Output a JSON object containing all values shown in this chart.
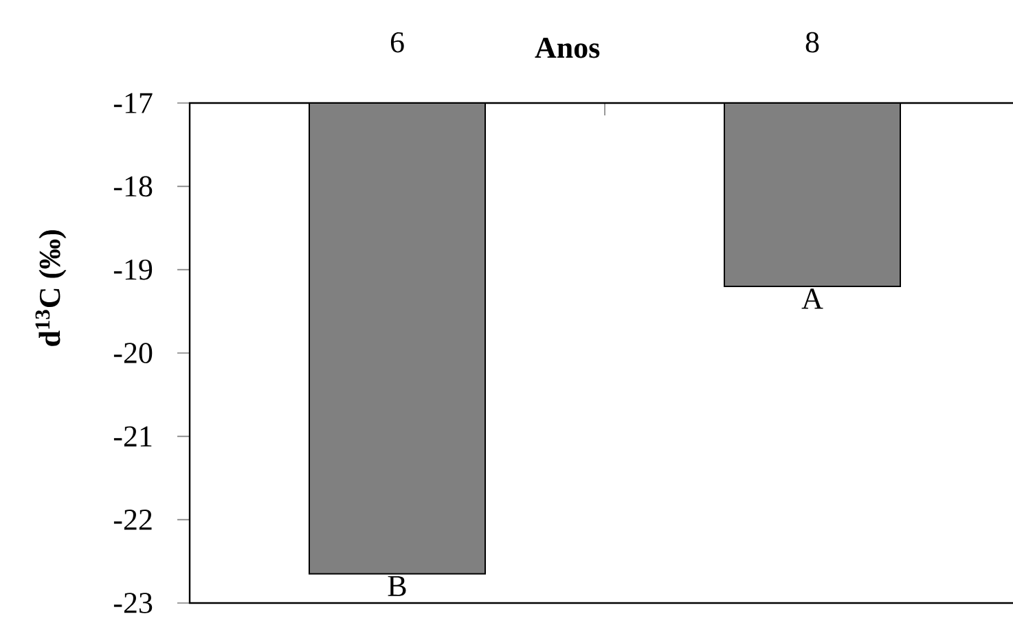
{
  "chart_data": {
    "type": "bar",
    "xlabel": "Anos",
    "ylabel": "d$^{13}$C (‰)",
    "categories": [
      "6",
      "8"
    ],
    "values": [
      -22.65,
      -19.2
    ],
    "color": "#808080",
    "ylim": [
      -23,
      -17
    ],
    "yticks": [
      -23,
      -22,
      -21,
      -20,
      -19,
      -18,
      -17
    ],
    "annotations": [
      "B",
      "A"
    ]
  }
}
